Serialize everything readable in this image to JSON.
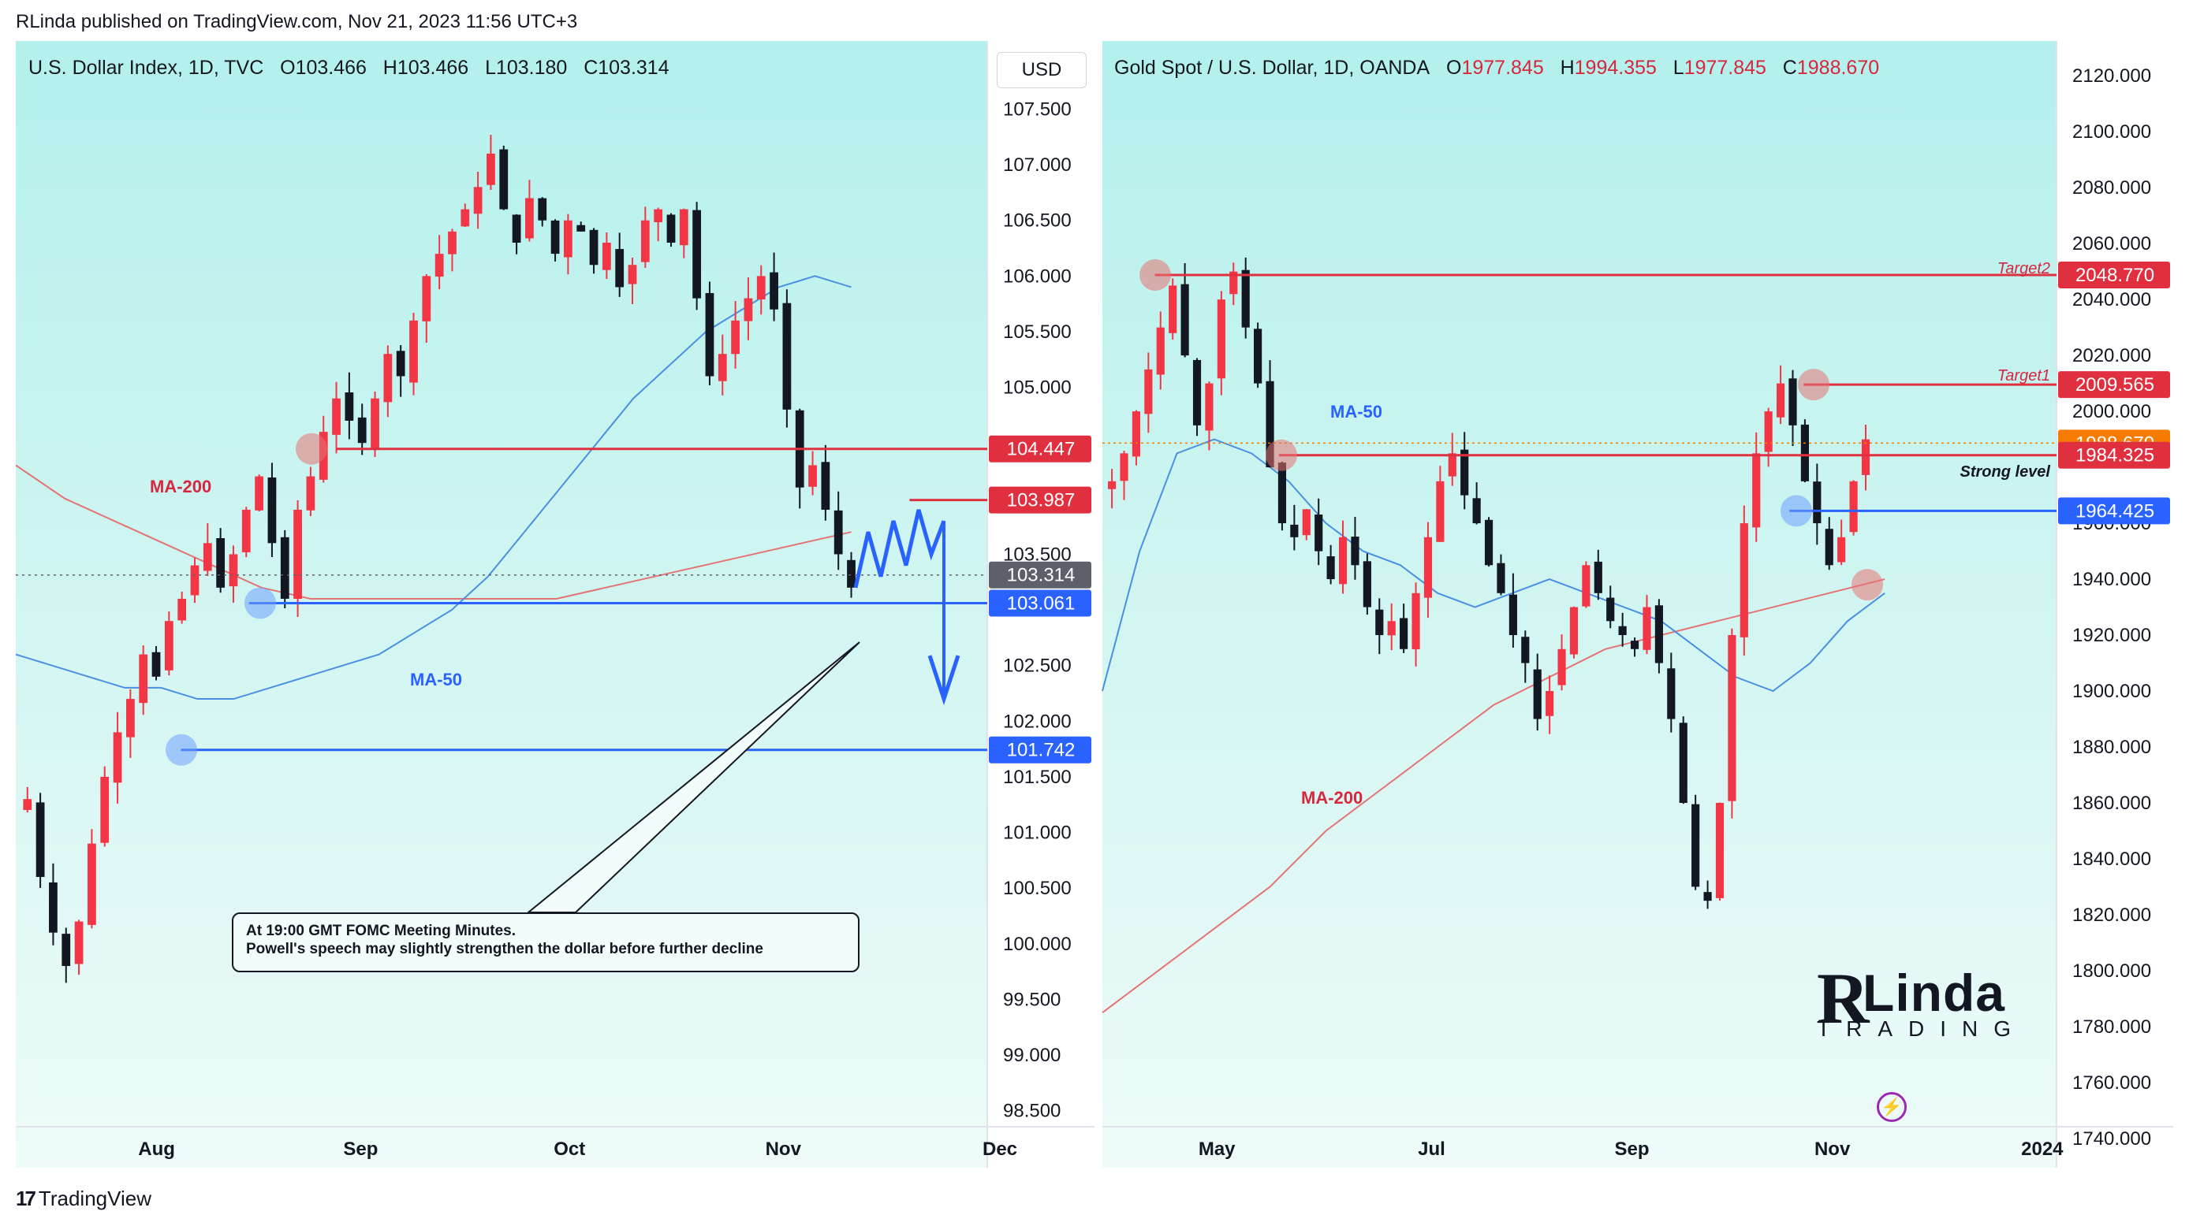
{
  "header": "RLinda published on TradingView.com, Nov 21, 2023 11:56 UTC+3",
  "footer": {
    "brand": "TradingView",
    "glyph": "17"
  },
  "colors": {
    "up": "#f23645",
    "down": "#131722",
    "red_level": "#e03040",
    "blue_level": "#2962ff",
    "ma50": "#4a90e2",
    "ma200": "#e57373",
    "target": "#d7263d"
  },
  "left": {
    "title": {
      "name": "U.S. Dollar Index, 1D, TVC",
      "o_label": "O",
      "o": "103.466",
      "h_label": "H",
      "h": "103.466",
      "l_label": "L",
      "l": "103.180",
      "c_label": "C",
      "c": "103.314"
    },
    "currency": "USD",
    "ma200_label": "MA-200",
    "ma50_label": "MA-50",
    "note": {
      "line1": "At 19:00 GMT FOMC Meeting Minutes.",
      "line2": "Powell's speech may slightly strengthen the dollar before further decline"
    }
  },
  "right": {
    "title": {
      "name": "Gold Spot / U.S. Dollar, 1D, OANDA",
      "o_label": "O",
      "o": "1977.845",
      "h_label": "H",
      "h": "1994.355",
      "l_label": "L",
      "l": "1977.845",
      "c_label": "C",
      "c": "1988.670"
    },
    "ma50_label": "MA-50",
    "ma200_label": "MA-200",
    "strong_level_label": "Strong level",
    "target1_label": "Target1",
    "target2_label": "Target2",
    "brand": {
      "mark": "R",
      "word": "Linda",
      "sub": "TRADING"
    }
  },
  "chart_data": [
    {
      "type": "candlestick",
      "title": "U.S. Dollar Index, 1D, TVC",
      "x_ticks": [
        "Aug",
        "Sep",
        "Oct",
        "Nov",
        "Dec"
      ],
      "y_ticks": [
        "107.500",
        "107.000",
        "106.500",
        "106.000",
        "105.500",
        "105.000",
        "103.500",
        "102.500",
        "102.000",
        "101.500",
        "101.000",
        "100.500",
        "100.000",
        "99.500",
        "99.000",
        "98.500"
      ],
      "ylim": [
        98.2,
        107.9
      ],
      "levels": [
        {
          "label": "104.447",
          "value": 104.447,
          "color": "red"
        },
        {
          "label": "103.987",
          "value": 103.987,
          "color": "red"
        },
        {
          "label": "103.314",
          "value": 103.314,
          "color": "gray"
        },
        {
          "label": "103.061",
          "value": 103.061,
          "color": "blue"
        },
        {
          "label": "101.742",
          "value": 101.742,
          "color": "blue"
        }
      ],
      "close_path": [
        101.3,
        100.6,
        100.1,
        99.8,
        100.2,
        100.9,
        101.5,
        101.9,
        102.2,
        102.6,
        102.4,
        102.9,
        103.1,
        103.4,
        103.6,
        103.2,
        103.5,
        103.9,
        104.2,
        103.6,
        103.1,
        103.9,
        104.2,
        104.6,
        104.9,
        104.7,
        104.5,
        104.9,
        105.3,
        105.1,
        105.6,
        106.0,
        106.2,
        106.4,
        106.6,
        106.8,
        107.1,
        106.6,
        106.3,
        106.7,
        106.5,
        106.2,
        106.5,
        106.4,
        106.1,
        106.3,
        105.9,
        106.1,
        106.5,
        106.6,
        106.3,
        106.6,
        105.8,
        105.1,
        105.3,
        105.6,
        105.8,
        106.0,
        105.7,
        104.8,
        104.1,
        104.3,
        103.9,
        103.5,
        103.2
      ],
      "projection": [
        103.2,
        103.7,
        103.3,
        103.8,
        103.4,
        103.9,
        103.5,
        103.8,
        102.2
      ],
      "ma50": [
        102.6,
        102.5,
        102.4,
        102.3,
        102.3,
        102.2,
        102.2,
        102.3,
        102.4,
        102.5,
        102.6,
        102.8,
        103.0,
        103.3,
        103.7,
        104.1,
        104.5,
        104.9,
        105.2,
        105.5,
        105.7,
        105.9,
        106.0,
        105.9
      ],
      "ma200": [
        104.3,
        104.0,
        103.8,
        103.6,
        103.4,
        103.2,
        103.1,
        103.1,
        103.1,
        103.1,
        103.1,
        103.1,
        103.2,
        103.3,
        103.4,
        103.5,
        103.6,
        103.7
      ]
    },
    {
      "type": "candlestick",
      "title": "Gold Spot / U.S. Dollar, 1D, OANDA",
      "x_ticks": [
        "May",
        "Jul",
        "Sep",
        "Nov",
        "2024"
      ],
      "y_ticks": [
        "2120.000",
        "2100.000",
        "2080.000",
        "2060.000",
        "2040.000",
        "2020.000",
        "2000.000",
        "1960.000",
        "1940.000",
        "1920.000",
        "1900.000",
        "1880.000",
        "1860.000",
        "1840.000",
        "1820.000",
        "1800.000",
        "1780.000",
        "1760.000",
        "1740.000"
      ],
      "ylim": [
        1738,
        2124
      ],
      "levels": [
        {
          "label": "2048.770",
          "value": 2048.77,
          "color": "red"
        },
        {
          "label": "2009.565",
          "value": 2009.565,
          "color": "red"
        },
        {
          "label": "1988.670",
          "value": 1988.67,
          "color": "orange"
        },
        {
          "label": "1984.325",
          "value": 1984.325,
          "color": "red"
        },
        {
          "label": "1964.425",
          "value": 1964.425,
          "color": "blue"
        }
      ],
      "close_path": [
        1975,
        1985,
        2000,
        2015,
        2030,
        2045,
        2020,
        1995,
        2010,
        2040,
        2050,
        2030,
        2010,
        1980,
        1960,
        1955,
        1965,
        1950,
        1940,
        1955,
        1945,
        1930,
        1920,
        1925,
        1915,
        1935,
        1955,
        1975,
        1985,
        1970,
        1960,
        1945,
        1935,
        1920,
        1910,
        1890,
        1900,
        1915,
        1930,
        1945,
        1935,
        1925,
        1920,
        1915,
        1930,
        1910,
        1890,
        1860,
        1830,
        1825,
        1860,
        1920,
        1960,
        1985,
        2000,
        2010,
        1995,
        1975,
        1960,
        1945,
        1955,
        1975,
        1990
      ],
      "ma50": [
        1900,
        1950,
        1985,
        1990,
        1985,
        1975,
        1960,
        1950,
        1945,
        1935,
        1930,
        1935,
        1940,
        1935,
        1930,
        1925,
        1915,
        1905,
        1900,
        1910,
        1925,
        1935
      ],
      "ma200": [
        1785,
        1800,
        1815,
        1830,
        1850,
        1865,
        1880,
        1895,
        1905,
        1915,
        1920,
        1925,
        1930,
        1935,
        1940
      ]
    }
  ]
}
